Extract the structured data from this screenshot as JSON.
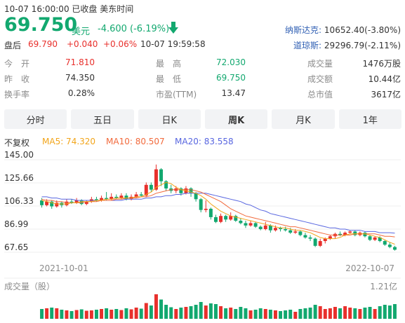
{
  "header": {
    "status_line": "10-07 16:00:00  已收盘  美东时间",
    "price": "69.750",
    "currency": "美元",
    "change": "-4.600 (-6.19%)",
    "after_label": "盘后",
    "after_price": "69.790",
    "after_change": "+0.040",
    "after_pct": "+0.06%",
    "after_time": "10-07 19:59:58"
  },
  "indices": [
    {
      "name": "纳斯达克:",
      "value": "10652.40(-3.80%)"
    },
    {
      "name": "道琼斯:",
      "value": "29296.79(-2.11%)"
    }
  ],
  "stats": {
    "open_label": "今　开",
    "open_value": "71.810",
    "prev_close_label": "昨　收",
    "prev_close_value": "74.350",
    "turnover_label": "换手率",
    "turnover_value": "0.28%",
    "high_label": "最　高",
    "high_value": "72.030",
    "low_label": "最　低",
    "low_value": "69.750",
    "pe_label": "市盈(TTM)",
    "pe_value": "13.47",
    "volume_label": "成交量",
    "volume_value": "1476万股",
    "amount_label": "成交额",
    "amount_value": "10.44亿",
    "mktcap_label": "总市值",
    "mktcap_value": "3617亿"
  },
  "tabs": [
    {
      "label": "分时",
      "active": false
    },
    {
      "label": "五日",
      "active": false
    },
    {
      "label": "日K",
      "active": false
    },
    {
      "label": "周K",
      "active": true
    },
    {
      "label": "月K",
      "active": false
    },
    {
      "label": "1年",
      "active": false
    }
  ],
  "ma": {
    "adjust": "不复权",
    "ma5": "MA5: 74.320",
    "ma10": "MA10: 80.507",
    "ma20": "MA20: 83.558"
  },
  "colors": {
    "up": "#e8302c",
    "down": "#12a86f",
    "ma5": "#f2a51a",
    "ma10": "#f26a3c",
    "ma20": "#5866e0"
  },
  "chart_data": {
    "type": "candlestick",
    "y_ticks": [
      "145.00",
      "125.66",
      "106.33",
      "86.99",
      "67.65"
    ],
    "ylim": [
      67.65,
      145.0
    ],
    "x_labels": [
      "2021-10-01",
      "2022-10-07"
    ],
    "volume_label": "成交量（股）",
    "volume_max": "1.21亿",
    "candles": [
      {
        "o": 111,
        "c": 107,
        "h": 113,
        "l": 105,
        "v": 28
      },
      {
        "o": 107,
        "c": 110,
        "h": 112,
        "l": 106,
        "v": 30
      },
      {
        "o": 110,
        "c": 106,
        "h": 111,
        "l": 104,
        "v": 32
      },
      {
        "o": 106,
        "c": 109,
        "h": 111,
        "l": 105,
        "v": 30
      },
      {
        "o": 109,
        "c": 107,
        "h": 110,
        "l": 105,
        "v": 26
      },
      {
        "o": 107,
        "c": 110,
        "h": 112,
        "l": 106,
        "v": 24
      },
      {
        "o": 110,
        "c": 109,
        "h": 112,
        "l": 108,
        "v": 22
      },
      {
        "o": 109,
        "c": 111,
        "h": 113,
        "l": 108,
        "v": 25
      },
      {
        "o": 111,
        "c": 108,
        "h": 112,
        "l": 107,
        "v": 27
      },
      {
        "o": 108,
        "c": 110,
        "h": 111,
        "l": 107,
        "v": 23
      },
      {
        "o": 110,
        "c": 112,
        "h": 114,
        "l": 109,
        "v": 24
      },
      {
        "o": 112,
        "c": 111,
        "h": 114,
        "l": 110,
        "v": 26
      },
      {
        "o": 111,
        "c": 113,
        "h": 115,
        "l": 110,
        "v": 28
      },
      {
        "o": 113,
        "c": 112,
        "h": 118,
        "l": 111,
        "v": 30
      },
      {
        "o": 112,
        "c": 114,
        "h": 117,
        "l": 111,
        "v": 26
      },
      {
        "o": 114,
        "c": 113,
        "h": 116,
        "l": 112,
        "v": 28
      },
      {
        "o": 113,
        "c": 115,
        "h": 117,
        "l": 112,
        "v": 25
      },
      {
        "o": 115,
        "c": 112,
        "h": 117,
        "l": 111,
        "v": 30
      },
      {
        "o": 112,
        "c": 114,
        "h": 116,
        "l": 111,
        "v": 27
      },
      {
        "o": 114,
        "c": 116,
        "h": 118,
        "l": 113,
        "v": 32
      },
      {
        "o": 116,
        "c": 115,
        "h": 118,
        "l": 114,
        "v": 29
      },
      {
        "o": 115,
        "c": 124,
        "h": 126,
        "l": 114,
        "v": 45
      },
      {
        "o": 124,
        "c": 120,
        "h": 126,
        "l": 118,
        "v": 38
      },
      {
        "o": 120,
        "c": 137,
        "h": 141,
        "l": 119,
        "v": 70
      },
      {
        "o": 137,
        "c": 127,
        "h": 138,
        "l": 123,
        "v": 55
      },
      {
        "o": 127,
        "c": 121,
        "h": 128,
        "l": 119,
        "v": 40
      },
      {
        "o": 121,
        "c": 119,
        "h": 124,
        "l": 117,
        "v": 33
      },
      {
        "o": 119,
        "c": 121,
        "h": 123,
        "l": 117,
        "v": 28
      },
      {
        "o": 121,
        "c": 117,
        "h": 122,
        "l": 115,
        "v": 32
      },
      {
        "o": 117,
        "c": 121,
        "h": 123,
        "l": 116,
        "v": 34
      },
      {
        "o": 121,
        "c": 117,
        "h": 122,
        "l": 114,
        "v": 36
      },
      {
        "o": 117,
        "c": 112,
        "h": 118,
        "l": 110,
        "v": 40
      },
      {
        "o": 112,
        "c": 103,
        "h": 113,
        "l": 101,
        "v": 48
      },
      {
        "o": 103,
        "c": 104,
        "h": 111,
        "l": 101,
        "v": 38
      },
      {
        "o": 104,
        "c": 97,
        "h": 105,
        "l": 95,
        "v": 44
      },
      {
        "o": 97,
        "c": 93,
        "h": 99,
        "l": 92,
        "v": 42
      },
      {
        "o": 93,
        "c": 98,
        "h": 100,
        "l": 92,
        "v": 36
      },
      {
        "o": 98,
        "c": 95,
        "h": 99,
        "l": 93,
        "v": 30
      },
      {
        "o": 95,
        "c": 98,
        "h": 101,
        "l": 94,
        "v": 32
      },
      {
        "o": 98,
        "c": 94,
        "h": 99,
        "l": 93,
        "v": 28
      },
      {
        "o": 94,
        "c": 92,
        "h": 96,
        "l": 91,
        "v": 34
      },
      {
        "o": 92,
        "c": 90,
        "h": 94,
        "l": 88,
        "v": 30
      },
      {
        "o": 90,
        "c": 92,
        "h": 94,
        "l": 89,
        "v": 24
      },
      {
        "o": 92,
        "c": 89,
        "h": 93,
        "l": 88,
        "v": 26
      },
      {
        "o": 89,
        "c": 87,
        "h": 90,
        "l": 86,
        "v": 30
      },
      {
        "o": 87,
        "c": 90,
        "h": 93,
        "l": 86,
        "v": 28
      },
      {
        "o": 90,
        "c": 86,
        "h": 91,
        "l": 84,
        "v": 26
      },
      {
        "o": 86,
        "c": 88,
        "h": 90,
        "l": 85,
        "v": 24
      },
      {
        "o": 88,
        "c": 87,
        "h": 89,
        "l": 85,
        "v": 22
      },
      {
        "o": 87,
        "c": 86,
        "h": 89,
        "l": 85,
        "v": 24
      },
      {
        "o": 86,
        "c": 84,
        "h": 88,
        "l": 83,
        "v": 26
      },
      {
        "o": 84,
        "c": 85,
        "h": 87,
        "l": 83,
        "v": 20
      },
      {
        "o": 85,
        "c": 82,
        "h": 86,
        "l": 81,
        "v": 28
      },
      {
        "o": 82,
        "c": 80,
        "h": 84,
        "l": 79,
        "v": 30
      },
      {
        "o": 80,
        "c": 79,
        "h": 82,
        "l": 77,
        "v": 32
      },
      {
        "o": 79,
        "c": 73,
        "h": 80,
        "l": 72,
        "v": 40
      },
      {
        "o": 73,
        "c": 77,
        "h": 79,
        "l": 72,
        "v": 36
      },
      {
        "o": 77,
        "c": 79,
        "h": 80,
        "l": 75,
        "v": 28
      },
      {
        "o": 79,
        "c": 81,
        "h": 82,
        "l": 78,
        "v": 30
      },
      {
        "o": 81,
        "c": 83,
        "h": 84,
        "l": 79,
        "v": 34
      },
      {
        "o": 83,
        "c": 82,
        "h": 85,
        "l": 81,
        "v": 30
      },
      {
        "o": 82,
        "c": 84,
        "h": 85,
        "l": 81,
        "v": 36
      },
      {
        "o": 84,
        "c": 85,
        "h": 86,
        "l": 83,
        "v": 32
      },
      {
        "o": 85,
        "c": 82,
        "h": 86,
        "l": 81,
        "v": 30
      },
      {
        "o": 82,
        "c": 84,
        "h": 85,
        "l": 81,
        "v": 28
      },
      {
        "o": 84,
        "c": 81,
        "h": 85,
        "l": 80,
        "v": 32
      },
      {
        "o": 81,
        "c": 78,
        "h": 82,
        "l": 77,
        "v": 34
      },
      {
        "o": 78,
        "c": 80,
        "h": 81,
        "l": 77,
        "v": 28
      },
      {
        "o": 80,
        "c": 77,
        "h": 81,
        "l": 76,
        "v": 36
      },
      {
        "o": 77,
        "c": 74,
        "h": 78,
        "l": 73,
        "v": 40
      },
      {
        "o": 74,
        "c": 72,
        "h": 76,
        "l": 71,
        "v": 38
      },
      {
        "o": 72,
        "c": 69.75,
        "h": 73,
        "l": 69,
        "v": 42
      }
    ],
    "ma5_points": [
      111,
      110,
      109,
      108,
      108,
      108,
      109,
      109,
      110,
      110,
      110,
      111,
      111,
      112,
      112,
      113,
      113,
      113,
      113,
      114,
      114,
      116,
      118,
      122,
      124,
      126,
      125,
      122,
      120,
      119,
      118,
      117,
      115,
      112,
      108,
      105,
      102,
      100,
      98,
      97,
      96,
      95,
      94,
      93,
      92,
      91,
      90,
      89,
      88,
      88,
      87,
      86,
      86,
      85,
      84,
      82,
      80,
      79,
      79,
      79,
      80,
      82,
      83,
      83,
      83,
      83,
      82,
      81,
      80,
      78,
      76,
      74.32
    ],
    "ma10_points": [
      112,
      111,
      111,
      110,
      110,
      109,
      109,
      109,
      109,
      110,
      110,
      110,
      111,
      111,
      111,
      112,
      112,
      113,
      113,
      113,
      114,
      114,
      115,
      117,
      118,
      119,
      120,
      120,
      120,
      120,
      120,
      119,
      118,
      116,
      114,
      112,
      110,
      107,
      104,
      102,
      100,
      98,
      97,
      96,
      95,
      94,
      93,
      92,
      91,
      90,
      89,
      89,
      88,
      87,
      86,
      85,
      84,
      83,
      82,
      82,
      82,
      82,
      82,
      83,
      83,
      83,
      83,
      83,
      82,
      81,
      81,
      80.5
    ],
    "ma20_points": [
      114,
      114,
      113,
      113,
      112,
      112,
      112,
      111,
      111,
      111,
      111,
      111,
      111,
      111,
      111,
      111,
      111,
      112,
      112,
      112,
      112,
      113,
      113,
      114,
      114,
      115,
      115,
      116,
      116,
      117,
      117,
      117,
      117,
      117,
      116,
      115,
      114,
      113,
      112,
      111,
      110,
      108,
      107,
      105,
      103,
      102,
      100,
      99,
      98,
      97,
      96,
      95,
      94,
      93,
      92,
      91,
      90,
      89,
      88,
      88,
      87,
      87,
      86,
      86,
      86,
      85,
      85,
      85,
      84,
      84,
      84,
      83.56
    ]
  }
}
